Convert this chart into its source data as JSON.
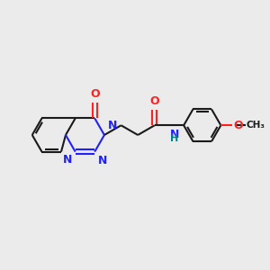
{
  "bg_color": "#ebebeb",
  "bond_color": "#1a1a1a",
  "N_color": "#2020ff",
  "O_color": "#ff2020",
  "NH_color": "#008080",
  "lw": 1.5,
  "figsize": [
    3.0,
    3.0
  ],
  "dpi": 100,
  "xlim": [
    0,
    10
  ],
  "ylim": [
    1,
    9
  ],
  "ring_r": 0.75,
  "sep": 0.09
}
